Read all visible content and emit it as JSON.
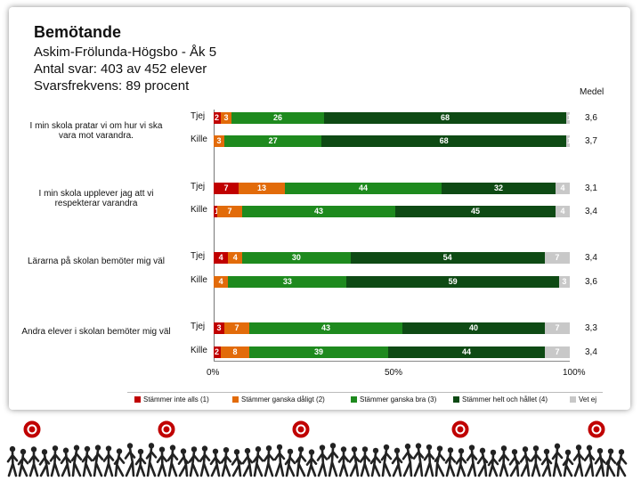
{
  "header": {
    "title": "Bemötande",
    "line1": "Askim-Frölunda-Högsbo - Åk 5",
    "line2": "Antal svar: 403 av 452 elever",
    "line3": "Svarsfrekvens: 89 procent"
  },
  "mean_header": "Medel",
  "chart_data": {
    "type": "bar",
    "stacked": true,
    "orientation": "horizontal",
    "xlim": [
      0,
      100
    ],
    "x_ticks": [
      "0%",
      "50%",
      "100%"
    ],
    "categories": [
      "Stämmer inte alls (1)",
      "Stämmer ganska dåligt (2)",
      "Stämmer ganska bra (3)",
      "Stämmer helt och hållet (4)",
      "Vet ej"
    ],
    "colors": [
      "#c00000",
      "#e26b0a",
      "#1e8a1e",
      "#0e4a14",
      "#c8c8c8"
    ],
    "questions": [
      {
        "label": "I min skola pratar vi om hur vi ska vara mot varandra.",
        "rows": [
          {
            "group": "Tjej",
            "values": [
              2,
              3,
              26,
              68,
              1
            ],
            "mean": "3,6"
          },
          {
            "group": "Kille",
            "values": [
              0,
              3,
              27,
              68,
              1
            ],
            "mean": "3,7"
          }
        ]
      },
      {
        "label": "I min skola upplever jag att vi respekterar varandra",
        "rows": [
          {
            "group": "Tjej",
            "values": [
              7,
              13,
              44,
              32,
              4
            ],
            "mean": "3,1"
          },
          {
            "group": "Kille",
            "values": [
              1,
              7,
              43,
              45,
              4
            ],
            "mean": "3,4"
          }
        ]
      },
      {
        "label": "Lärarna på skolan bemöter mig väl",
        "rows": [
          {
            "group": "Tjej",
            "values": [
              4,
              4,
              30,
              54,
              7
            ],
            "mean": "3,4"
          },
          {
            "group": "Kille",
            "values": [
              0,
              4,
              33,
              59,
              3
            ],
            "mean": "3,6"
          }
        ]
      },
      {
        "label": "Andra elever i skolan bemöter mig väl",
        "rows": [
          {
            "group": "Tjej",
            "values": [
              3,
              7,
              43,
              40,
              7
            ],
            "mean": "3,3"
          },
          {
            "group": "Kille",
            "values": [
              2,
              8,
              39,
              44,
              7
            ],
            "mean": "3,4"
          }
        ]
      }
    ]
  }
}
